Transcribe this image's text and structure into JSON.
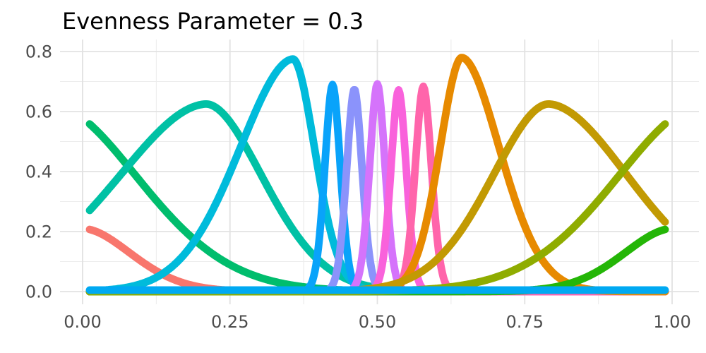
{
  "chart_data": {
    "type": "line",
    "title": "Evenness Parameter =  0.3",
    "xlabel": "",
    "ylabel": "",
    "xlim": [
      0.0,
      1.0
    ],
    "ylim": [
      0.0,
      0.8
    ],
    "grid": "on",
    "legend": "none",
    "x_ticks": [
      {
        "value": 0.0,
        "label": "0.00"
      },
      {
        "value": 0.25,
        "label": "0.25"
      },
      {
        "value": 0.5,
        "label": "0.50"
      },
      {
        "value": 0.75,
        "label": "0.75"
      },
      {
        "value": 1.0,
        "label": "1.00"
      }
    ],
    "y_ticks": [
      {
        "value": 0.0,
        "label": "0.0"
      },
      {
        "value": 0.2,
        "label": "0.2"
      },
      {
        "value": 0.4,
        "label": "0.4"
      },
      {
        "value": 0.6,
        "label": "0.6"
      },
      {
        "value": 0.8,
        "label": "0.8"
      }
    ],
    "x_minor_gridlines": [
      0.125,
      0.375,
      0.625,
      0.875
    ],
    "y_minor_gridlines": [
      0.1,
      0.3,
      0.5,
      0.7
    ],
    "curve_model": {
      "description": "value = height * exp(-(|x-center|/alpha)^exponent), alpha side-dependent",
      "exponent": 1.85,
      "x_range": [
        0.012,
        0.988
      ]
    },
    "series": [
      {
        "name": "curve-salmon",
        "color": "#F8766D",
        "center": 0.0,
        "height": 0.21,
        "alpha_left": 0.118,
        "alpha_right": 0.118,
        "flat": false,
        "z": 1
      },
      {
        "name": "curve-green",
        "color": "#00BD6D",
        "center": -0.05,
        "height": 0.62,
        "alpha_left": 0.21,
        "alpha_right": 0.21,
        "flat": false,
        "z": 2
      },
      {
        "name": "curve-teal",
        "color": "#00C1A5",
        "center": 0.21,
        "height": 0.625,
        "alpha_left": 0.218,
        "alpha_right": 0.139,
        "flat": false,
        "z": 3
      },
      {
        "name": "curve-cyan",
        "color": "#00BBDB",
        "center": 0.357,
        "height": 0.775,
        "alpha_left": 0.133,
        "alpha_right": 0.054,
        "flat": false,
        "z": 4
      },
      {
        "name": "curve-blue",
        "color": "#09A3FA",
        "center": 0.424,
        "height": 0.69,
        "alpha_left": 0.019,
        "alpha_right": 0.019,
        "flat": false,
        "z": 5
      },
      {
        "name": "curve-periwinkle",
        "color": "#8B93FB",
        "center": 0.461,
        "height": 0.675,
        "alpha_left": 0.019,
        "alpha_right": 0.019,
        "flat": false,
        "z": 6
      },
      {
        "name": "curve-orchid",
        "color": "#D573FB",
        "center": 0.5,
        "height": 0.692,
        "alpha_left": 0.019,
        "alpha_right": 0.019,
        "flat": false,
        "z": 7
      },
      {
        "name": "curve-magenta",
        "color": "#F962DB",
        "center": 0.536,
        "height": 0.672,
        "alpha_left": 0.019,
        "alpha_right": 0.019,
        "flat": false,
        "z": 8
      },
      {
        "name": "curve-hotpink",
        "color": "#FF65AB",
        "center": 0.578,
        "height": 0.684,
        "alpha_left": 0.02,
        "alpha_right": 0.02,
        "flat": false,
        "z": 9
      },
      {
        "name": "curve-orange",
        "color": "#E78A00",
        "center": 0.643,
        "height": 0.78,
        "alpha_left": 0.054,
        "alpha_right": 0.094,
        "flat": false,
        "z": 10
      },
      {
        "name": "curve-olive",
        "color": "#C29A03",
        "center": 0.79,
        "height": 0.625,
        "alpha_left": 0.139,
        "alpha_right": 0.199,
        "flat": false,
        "z": 11
      },
      {
        "name": "curve-brightgreen",
        "color": "#24B607",
        "center": 1.0,
        "height": 0.21,
        "alpha_left": 0.118,
        "alpha_right": 0.118,
        "flat": false,
        "z": 12
      },
      {
        "name": "curve-yellowgreen",
        "color": "#8FAC00",
        "center": 1.05,
        "height": 0.62,
        "alpha_left": 0.21,
        "alpha_right": 0.21,
        "flat": false,
        "z": 13
      },
      {
        "name": "curve-azure-flat",
        "color": "#00A9F2",
        "center": 0.5,
        "height": 0.0,
        "alpha_left": 0.1,
        "alpha_right": 0.1,
        "flat": true,
        "flat_value": 0.005,
        "z": 14
      }
    ],
    "style": {
      "background": "#FFFFFF",
      "grid_major_color": "#E2E2E2",
      "grid_minor_color": "#ECECEC",
      "tick_label_color": "#4D4D4D",
      "title_color": "#000000",
      "curve_stroke_width": 10.8
    }
  }
}
